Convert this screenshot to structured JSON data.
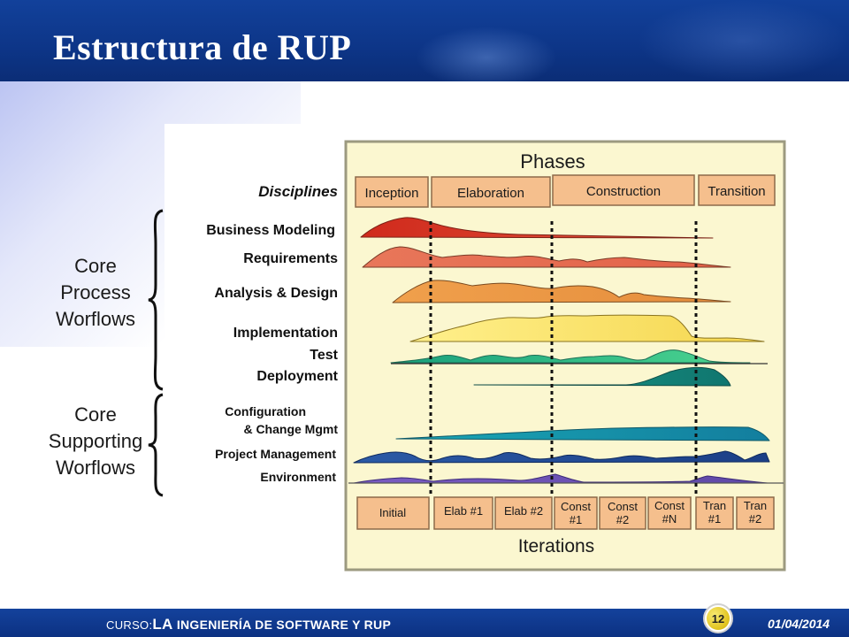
{
  "slide": {
    "title": "Estructura de RUP",
    "groups": {
      "core_process": [
        "Core",
        "Process",
        "Worflows"
      ],
      "core_supporting": [
        "Core",
        "Supporting",
        "Worflows"
      ]
    }
  },
  "diagram": {
    "phases_title": "Phases",
    "disciplines_label": "Disciplines",
    "phases": [
      "Inception",
      "Elaboration",
      "Construction",
      "Transition"
    ],
    "disciplines": [
      "Business Modeling",
      "Requirements",
      "Analysis & Design",
      "Implementation",
      "Test",
      "Deployment",
      "Configuration",
      "& Change Mgmt",
      "Project Management",
      "Environment"
    ],
    "iterations": [
      [
        "Initial"
      ],
      [
        "Elab #1"
      ],
      [
        "Elab #2"
      ],
      [
        "Const",
        "#1"
      ],
      [
        "Const",
        "#2"
      ],
      [
        "Const",
        "#N"
      ],
      [
        "Tran",
        "#1"
      ],
      [
        "Tran",
        "#2"
      ]
    ],
    "iterations_title": "Iterations",
    "colors": {
      "panel_bg": "#fbf7d2",
      "phase_box": "#f5c08e",
      "business_modeling": "#d43a26",
      "requirements": "#e66e4e",
      "analysis_design": "#eb9a4a",
      "implementation": "#fae16d",
      "test": "#3fc48c",
      "deployment": "#15857a",
      "config": "#1591a6",
      "project_mgmt": "#1f4f94",
      "environment": "#6b52b2"
    }
  },
  "footer": {
    "course_prefix": "CURSO:",
    "course_la": "LA",
    "course_rest": " INGENIERÍA DE SOFTWARE Y RUP",
    "page_number": "12",
    "date": "01/04/2014"
  }
}
